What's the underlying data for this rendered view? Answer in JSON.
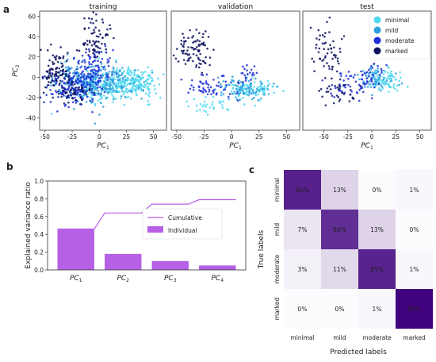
{
  "panel_labels": {
    "a": "a",
    "b": "b",
    "c": "c"
  },
  "colors": {
    "minimal": "#4fd8f0",
    "mild": "#2c9fdc",
    "moderate": "#1f2fd8",
    "marked": "#0c125e",
    "bar": "#b660e6",
    "cumulative": "#b660e6",
    "heat_high": "#3f007d",
    "heat_low": "#fcfbfd"
  },
  "chart_data": [
    {
      "type": "scatter",
      "title": "training",
      "xlabel": "PC",
      "xlabel_sub": "1",
      "ylabel": "PC",
      "ylabel_sub": "2",
      "xlim": [
        -55,
        62
      ],
      "ylim": [
        -52,
        65
      ],
      "xticks": [
        -50,
        -25,
        0,
        25,
        50
      ],
      "yticks": [
        -40,
        -20,
        0,
        20,
        40,
        60
      ],
      "series": [
        {
          "name": "minimal",
          "clusters": [
            [
              10,
              -8,
              20,
              8,
              260
            ],
            [
              35,
              -5,
              10,
              6,
              120
            ]
          ]
        },
        {
          "name": "mild",
          "clusters": [
            [
              0,
              -5,
              18,
              10,
              220
            ],
            [
              -20,
              0,
              10,
              8,
              80
            ]
          ]
        },
        {
          "name": "moderate",
          "clusters": [
            [
              -25,
              -10,
              12,
              9,
              160
            ],
            [
              -5,
              10,
              10,
              10,
              90
            ]
          ]
        },
        {
          "name": "marked",
          "clusters": [
            [
              -40,
              5,
              7,
              9,
              90
            ],
            [
              -3,
              40,
              6,
              12,
              70
            ],
            [
              -25,
              -15,
              8,
              5,
              50
            ]
          ]
        }
      ]
    },
    {
      "type": "scatter",
      "title": "validation",
      "xlabel": "PC",
      "xlabel_sub": "1",
      "xlim": [
        -55,
        62
      ],
      "ylim": [
        -52,
        65
      ],
      "xticks": [
        -50,
        -25,
        0,
        25,
        50
      ],
      "series": [
        {
          "name": "minimal",
          "clusters": [
            [
              18,
              -12,
              10,
              5,
              90
            ],
            [
              -20,
              -28,
              10,
              4,
              30
            ]
          ]
        },
        {
          "name": "mild",
          "clusters": [
            [
              10,
              -10,
              12,
              6,
              80
            ]
          ]
        },
        {
          "name": "moderate",
          "clusters": [
            [
              -20,
              -10,
              14,
              6,
              60
            ],
            [
              15,
              3,
              5,
              4,
              20
            ]
          ]
        },
        {
          "name": "marked",
          "clusters": [
            [
              -32,
              25,
              10,
              10,
              70
            ],
            [
              -40,
              35,
              4,
              6,
              15
            ]
          ]
        }
      ]
    },
    {
      "type": "scatter",
      "title": "test",
      "xlabel": "PC",
      "xlabel_sub": "1",
      "xlim": [
        -72,
        62
      ],
      "ylim": [
        -52,
        65
      ],
      "xticks": [
        -50,
        -25,
        0,
        25,
        50
      ],
      "legend": [
        "minimal",
        "mild",
        "moderate",
        "marked"
      ],
      "legend_position": "top-right",
      "series": [
        {
          "name": "minimal",
          "clusters": [
            [
              15,
              -3,
              8,
              5,
              80
            ]
          ]
        },
        {
          "name": "mild",
          "clusters": [
            [
              5,
              0,
              9,
              6,
              60
            ]
          ]
        },
        {
          "name": "moderate",
          "clusters": [
            [
              -20,
              -8,
              12,
              7,
              55
            ],
            [
              0,
              5,
              6,
              6,
              20
            ]
          ]
        },
        {
          "name": "marked",
          "clusters": [
            [
              -45,
              25,
              8,
              15,
              60
            ],
            [
              -35,
              -15,
              10,
              6,
              30
            ]
          ]
        }
      ]
    },
    {
      "type": "bar",
      "categories": [
        "PC",
        "PC",
        "PC",
        "PC"
      ],
      "category_subs": [
        "1",
        "2",
        "3",
        "4"
      ],
      "series": [
        {
          "name": "Individual",
          "values": [
            0.46,
            0.18,
            0.1,
            0.05
          ]
        },
        {
          "name": "Cumulative",
          "values": [
            0.46,
            0.64,
            0.74,
            0.79
          ]
        }
      ],
      "ylabel": "Explained variance ratio",
      "ylim": [
        0,
        1.0
      ],
      "yticks": [
        "0.0",
        "0.2",
        "0.4",
        "0.6",
        "0.8",
        "1.0"
      ],
      "legend_position": "right"
    },
    {
      "type": "heatmap",
      "rows": [
        "minimal",
        "mild",
        "moderate",
        "marked"
      ],
      "columns": [
        "minimal",
        "mild",
        "moderate",
        "marked"
      ],
      "values": [
        [
          86,
          13,
          0,
          1
        ],
        [
          7,
          80,
          13,
          0
        ],
        [
          3,
          11,
          85,
          1
        ],
        [
          0,
          0,
          1,
          99
        ]
      ],
      "labels": [
        [
          "86%",
          "13%",
          "0%",
          "1%"
        ],
        [
          "7%",
          "80%",
          "13%",
          "0%"
        ],
        [
          "3%",
          "11%",
          "85%",
          "1%"
        ],
        [
          "0%",
          "0%",
          "1%",
          "99%"
        ]
      ],
      "xlabel": "Predicted labels",
      "ylabel": "True labels"
    }
  ]
}
